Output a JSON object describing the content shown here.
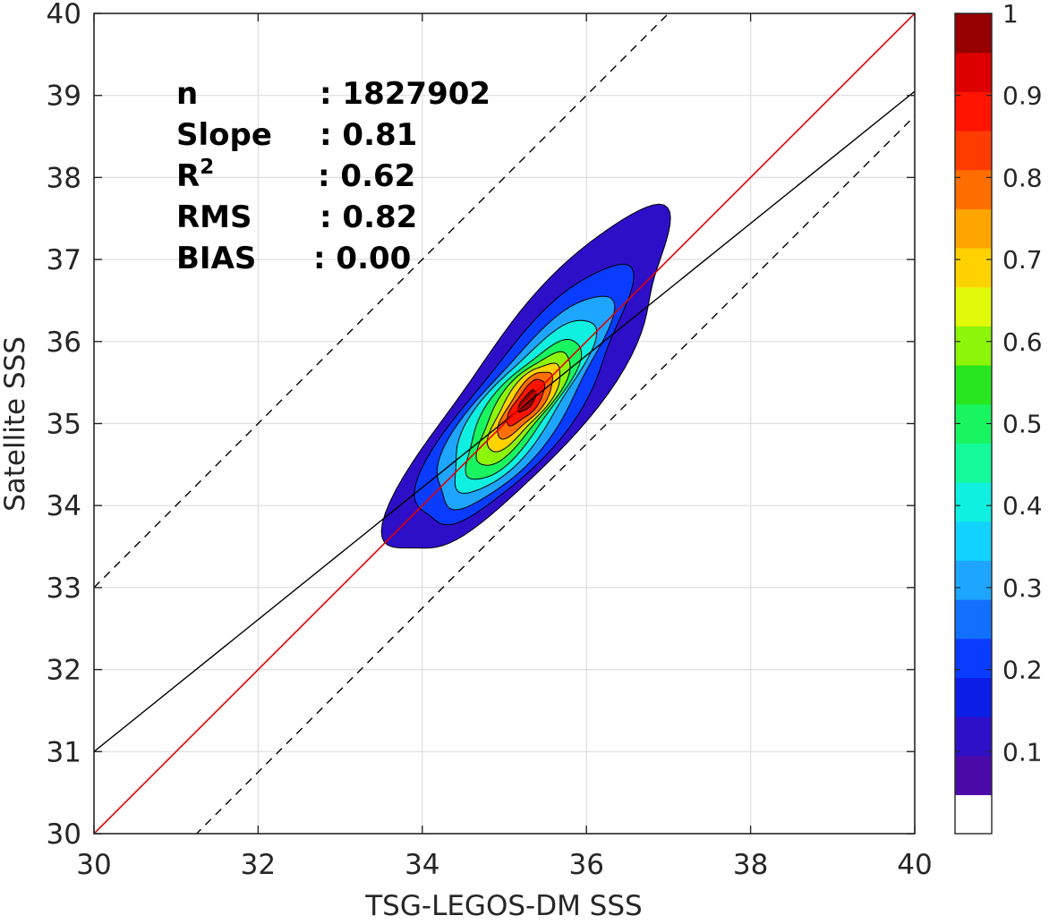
{
  "chart_data": {
    "type": "contour",
    "xlabel": "TSG-LEGOS-DM SSS",
    "ylabel": "Satellite SSS",
    "xlim": [
      30,
      40
    ],
    "ylim": [
      30,
      40
    ],
    "xticks": [
      30,
      32,
      34,
      36,
      38,
      40
    ],
    "yticks": [
      30,
      31,
      32,
      33,
      34,
      35,
      36,
      37,
      38,
      39,
      40
    ],
    "grid": true,
    "stats": [
      {
        "label": "n",
        "value": ": 1827902"
      },
      {
        "label": "Slope",
        "value": ": 0.81"
      },
      {
        "label": "R",
        "sup": "2",
        "value": ": 0.62"
      },
      {
        "label": "RMS",
        "value": ": 0.82"
      },
      {
        "label": "BIAS",
        "value": ": 0.00"
      }
    ],
    "lines": {
      "one_to_one": {
        "slope": 1,
        "intercept": 0,
        "color": "#e00000"
      },
      "fit": {
        "x": [
          30,
          40
        ],
        "y": [
          31.0,
          39.05
        ],
        "color": "#000000"
      },
      "upper_dashed": {
        "slope": 1,
        "intercept": 3,
        "color": "#000000",
        "style": "dashed"
      },
      "lower_dashed": {
        "slope": 1,
        "intercept": -1.25,
        "color": "#000000",
        "style": "dashed"
      }
    },
    "density_center": [
      35.25,
      35.25
    ],
    "density_major_axis_angle_deg": 52,
    "contour_levels": [
      {
        "level": 0.05,
        "semi_major": 2.6,
        "semi_minor": 0.72,
        "center": [
          35.35,
          35.45
        ]
      },
      {
        "level": 0.15,
        "semi_major": 1.95,
        "semi_minor": 0.58,
        "center": [
          35.25,
          35.28
        ]
      },
      {
        "level": 0.25,
        "semi_major": 1.6,
        "semi_minor": 0.48,
        "center": [
          35.22,
          35.22
        ]
      },
      {
        "level": 0.35,
        "semi_major": 1.3,
        "semi_minor": 0.4,
        "center": [
          35.2,
          35.2
        ]
      },
      {
        "level": 0.45,
        "semi_major": 1.05,
        "semi_minor": 0.33,
        "center": [
          35.2,
          35.18
        ]
      },
      {
        "level": 0.55,
        "semi_major": 0.85,
        "semi_minor": 0.27,
        "center": [
          35.22,
          35.2
        ]
      },
      {
        "level": 0.65,
        "semi_major": 0.66,
        "semi_minor": 0.22,
        "center": [
          35.24,
          35.22
        ]
      },
      {
        "level": 0.75,
        "semi_major": 0.5,
        "semi_minor": 0.17,
        "center": [
          35.26,
          35.24
        ]
      },
      {
        "level": 0.85,
        "semi_major": 0.34,
        "semi_minor": 0.12,
        "center": [
          35.27,
          35.26
        ]
      },
      {
        "level": 0.95,
        "semi_major": 0.16,
        "semi_minor": 0.06,
        "center": [
          35.28,
          35.27
        ]
      }
    ],
    "colorbar": {
      "range": [
        0,
        1
      ],
      "tick_values": [
        0.1,
        0.2,
        0.3,
        0.4,
        0.5,
        0.6,
        0.7,
        0.8,
        0.9,
        1
      ],
      "tick_labels": [
        "0.1",
        "0.2",
        "0.3",
        "0.4",
        "0.5",
        "0.6",
        "0.7",
        "0.8",
        "0.9",
        "1"
      ],
      "colors": [
        "#ffffff",
        "#4b0aa8",
        "#2e0fc8",
        "#0a1ee6",
        "#0a3cff",
        "#1270ff",
        "#1ea5ff",
        "#12d2ff",
        "#10f0e0",
        "#14fa9a",
        "#19f560",
        "#28e61e",
        "#8cf50a",
        "#e1fa0a",
        "#ffd200",
        "#ffa500",
        "#ff6e00",
        "#ff3c00",
        "#ff1400",
        "#dc0000",
        "#960000"
      ]
    }
  }
}
